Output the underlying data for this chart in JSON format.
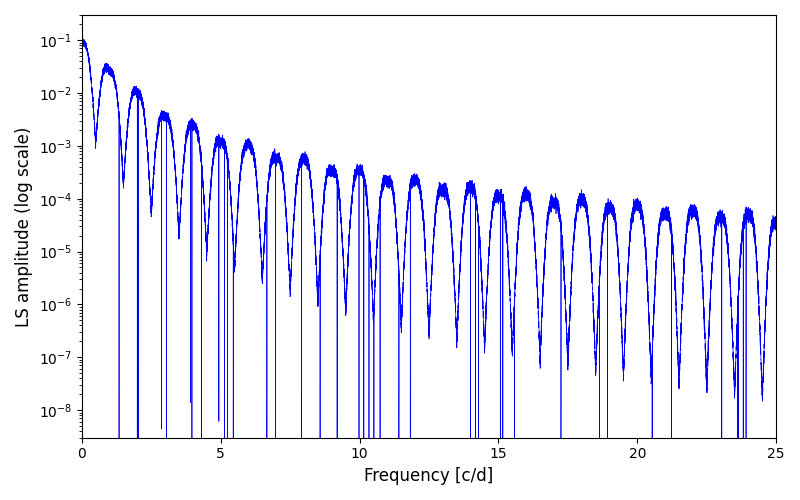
{
  "xlabel": "Frequency [c/d]",
  "ylabel": "LS amplitude (log scale)",
  "line_color": "blue",
  "xlim": [
    0,
    25
  ],
  "ylim": [
    3e-09,
    0.3
  ],
  "xticks": [
    0,
    5,
    10,
    15,
    20,
    25
  ],
  "figsize": [
    8.0,
    5.0
  ],
  "dpi": 100,
  "freq_max": 25.0,
  "n_points": 80000,
  "seed": 12345,
  "lw": 0.5
}
